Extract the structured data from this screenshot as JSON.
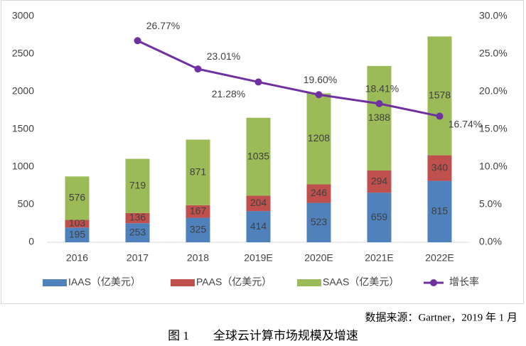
{
  "chart_data": {
    "type": "bar",
    "stacked": true,
    "categories": [
      "2016",
      "2017",
      "2018",
      "2019E",
      "2020E",
      "2021E",
      "2022E"
    ],
    "series": [
      {
        "name": "IAAS（亿美元）",
        "color": "#4f81bd",
        "values": [
          195,
          253,
          325,
          414,
          523,
          659,
          815
        ]
      },
      {
        "name": "PAAS（亿美元）",
        "color": "#c0504d",
        "values": [
          103,
          136,
          167,
          204,
          246,
          294,
          340
        ]
      },
      {
        "name": "SAAS（亿美元）",
        "color": "#9bbb59",
        "values": [
          576,
          719,
          871,
          1035,
          1208,
          1388,
          1578
        ]
      },
      {
        "name": "增长率",
        "color": "#7030a0",
        "type": "line",
        "axis": "y2",
        "values": [
          null,
          26.77,
          23.01,
          21.28,
          19.6,
          18.41,
          16.74
        ],
        "value_labels": [
          null,
          "26.77%",
          "23.01%",
          "21.28%",
          "19.60%",
          "18.41%",
          "16.74%"
        ]
      }
    ],
    "ylim": [
      0,
      3000
    ],
    "yticks": [
      0,
      500,
      1000,
      1500,
      2000,
      2500,
      3000
    ],
    "y2lim": [
      0,
      30
    ],
    "y2ticks": [
      {
        "value": 0,
        "label": "0.0%"
      },
      {
        "value": 5,
        "label": "5.0%"
      },
      {
        "value": 10,
        "label": "10.0%"
      },
      {
        "value": 15,
        "label": "15.0%"
      },
      {
        "value": 20,
        "label": "20.0%"
      },
      {
        "value": 25,
        "label": "25.0%"
      },
      {
        "value": 30,
        "label": "30.0%"
      }
    ],
    "legend": "bottom",
    "source": "数据来源：Gartner，2019 年 1 月",
    "caption": "图 1　　全球云计算市场规模及增速"
  }
}
